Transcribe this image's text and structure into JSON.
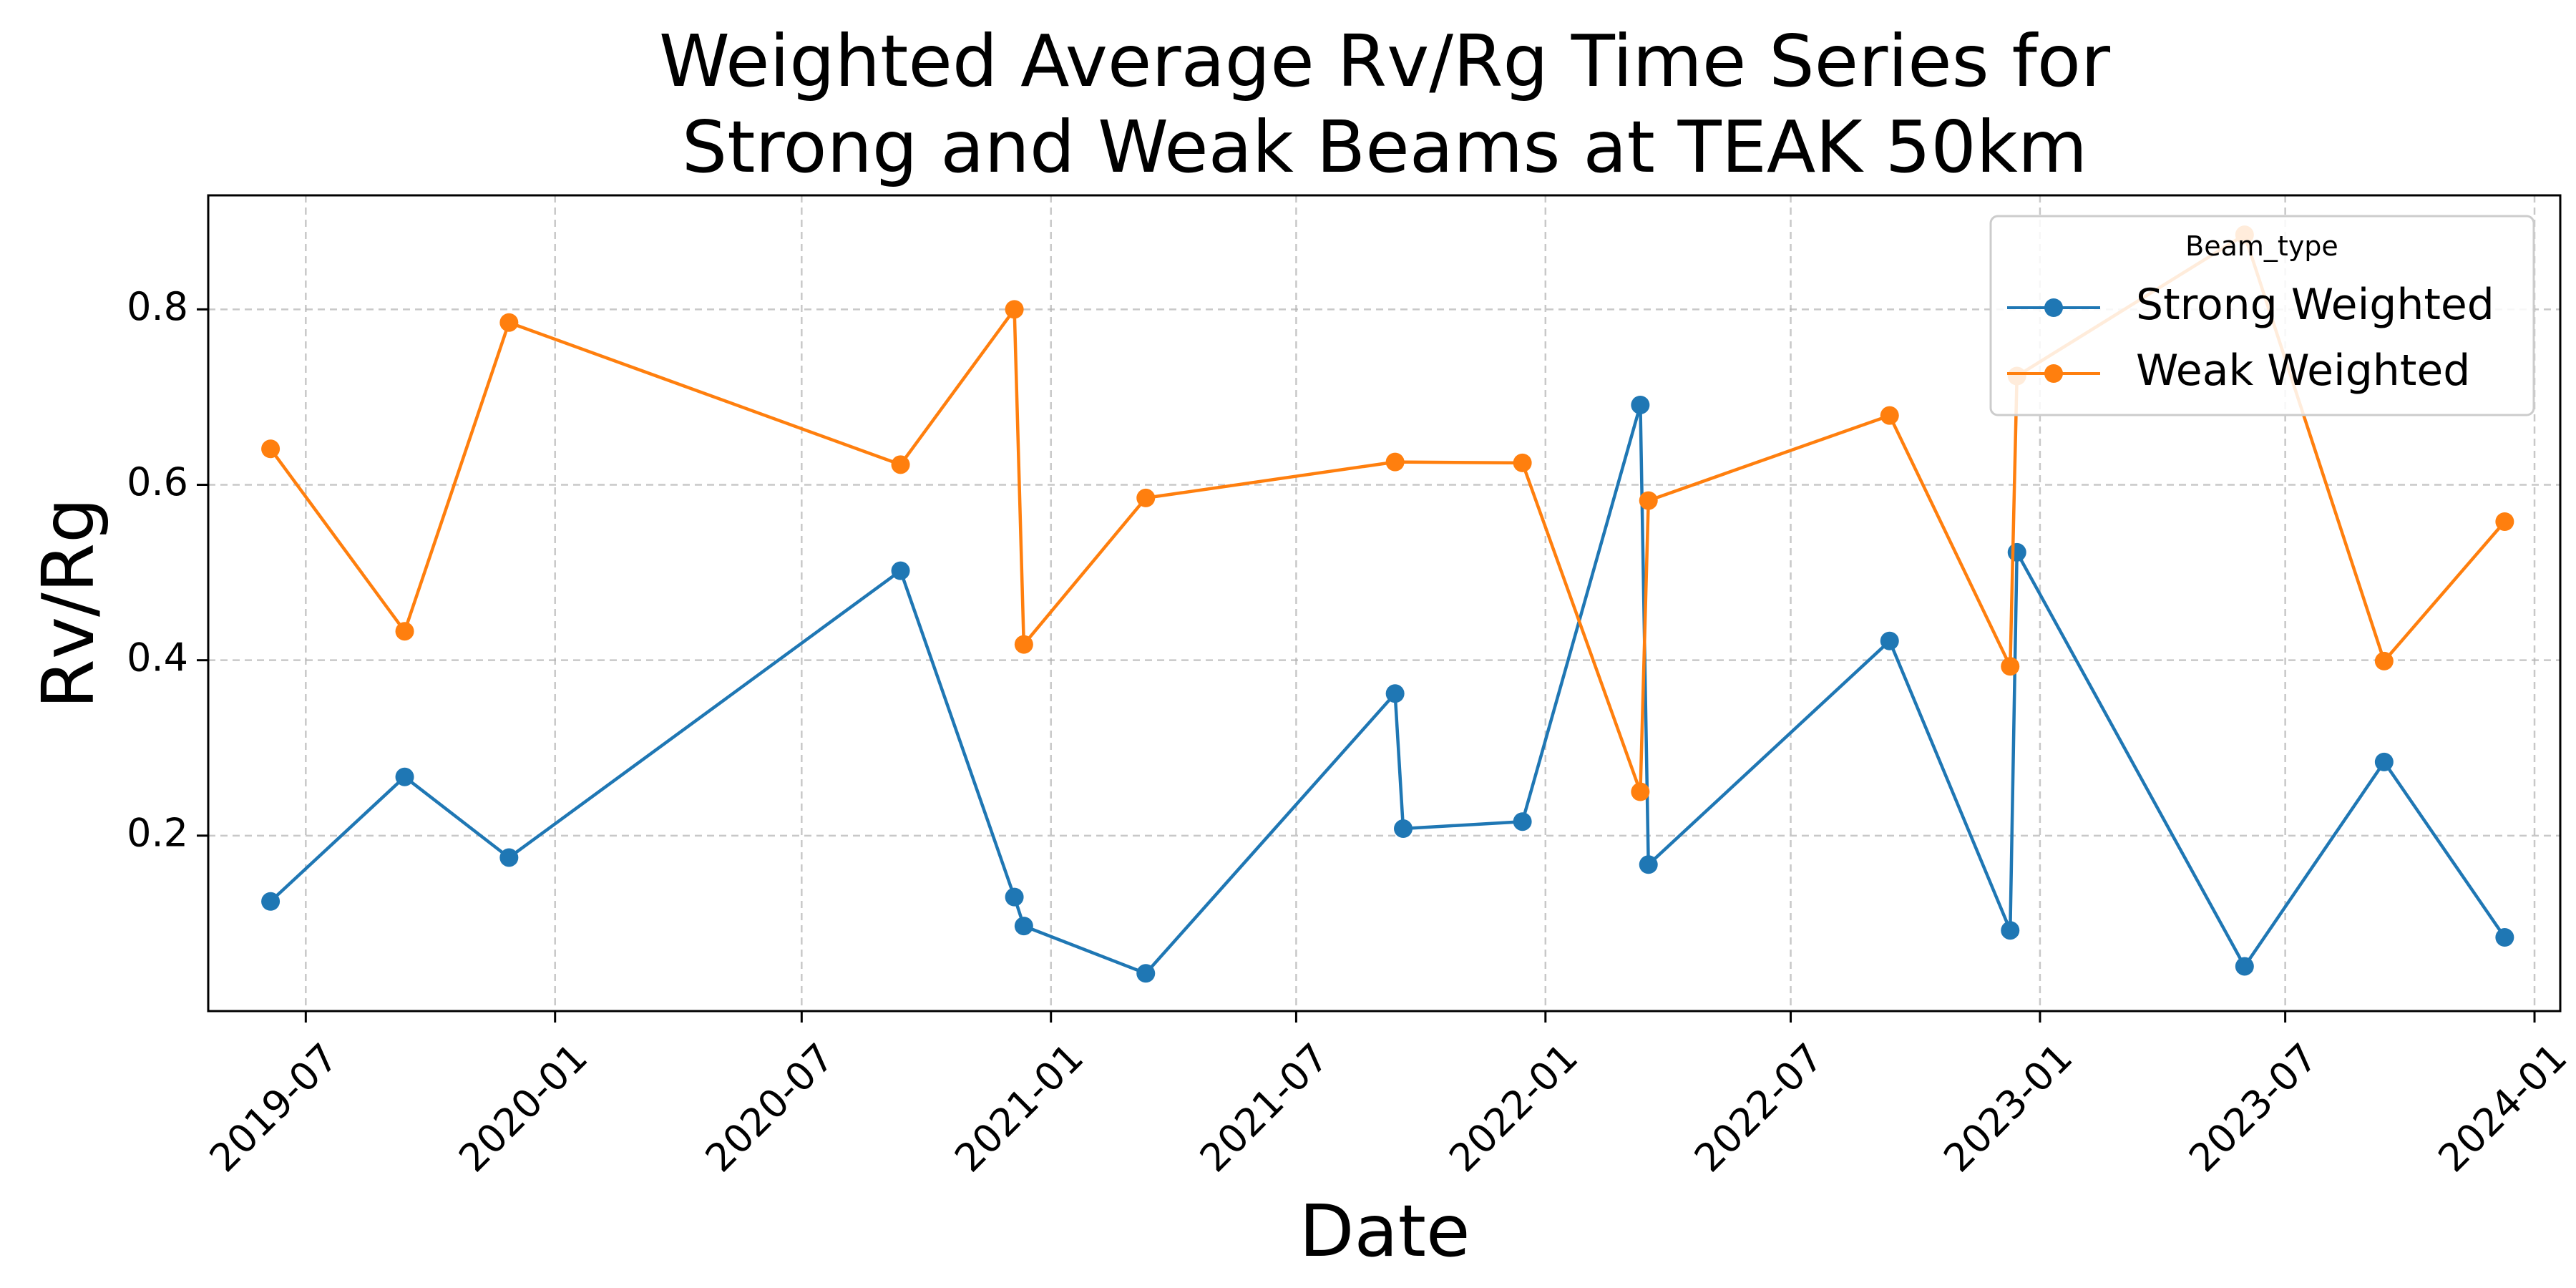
{
  "chart_data": {
    "type": "line",
    "title_lines": [
      "Weighted Average Rv/Rg Time Series for",
      "Strong and Weak Beams at TEAK 50km"
    ],
    "xlabel": "Date",
    "ylabel": "Rv/Rg",
    "x_range": [
      "2019-04-20",
      "2024-01-20"
    ],
    "ylim": [
      0.0,
      0.93
    ],
    "grid": true,
    "legend_title": "Beam_type",
    "legend_position": "top-right",
    "x_ticks": [
      {
        "date": "2019-07-01",
        "label": "2019-07"
      },
      {
        "date": "2020-01-01",
        "label": "2020-01"
      },
      {
        "date": "2020-07-01",
        "label": "2020-07"
      },
      {
        "date": "2021-01-01",
        "label": "2021-01"
      },
      {
        "date": "2021-07-01",
        "label": "2021-07"
      },
      {
        "date": "2022-01-01",
        "label": "2022-01"
      },
      {
        "date": "2022-07-01",
        "label": "2022-07"
      },
      {
        "date": "2023-01-01",
        "label": "2023-01"
      },
      {
        "date": "2023-07-01",
        "label": "2023-07"
      },
      {
        "date": "2024-01-01",
        "label": "2024-01"
      }
    ],
    "y_ticks": [
      {
        "value": 0.2,
        "label": "0.2"
      },
      {
        "value": 0.4,
        "label": "0.4"
      },
      {
        "value": 0.6,
        "label": "0.6"
      },
      {
        "value": 0.8,
        "label": "0.8"
      }
    ],
    "series": [
      {
        "name": "Strong Weighted",
        "color": "#1f77b4",
        "points": [
          {
            "date": "2019-06-05",
            "value": 0.125
          },
          {
            "date": "2019-09-12",
            "value": 0.267
          },
          {
            "date": "2019-11-28",
            "value": 0.175
          },
          {
            "date": "2020-09-12",
            "value": 0.502
          },
          {
            "date": "2020-12-05",
            "value": 0.13
          },
          {
            "date": "2020-12-12",
            "value": 0.097
          },
          {
            "date": "2021-03-12",
            "value": 0.043
          },
          {
            "date": "2021-09-12",
            "value": 0.362
          },
          {
            "date": "2021-09-18",
            "value": 0.208
          },
          {
            "date": "2021-12-15",
            "value": 0.216
          },
          {
            "date": "2022-03-12",
            "value": 0.691
          },
          {
            "date": "2022-03-18",
            "value": 0.167
          },
          {
            "date": "2022-09-12",
            "value": 0.422
          },
          {
            "date": "2022-12-10",
            "value": 0.092
          },
          {
            "date": "2022-12-15",
            "value": 0.523
          },
          {
            "date": "2023-06-01",
            "value": 0.051
          },
          {
            "date": "2023-09-12",
            "value": 0.284
          },
          {
            "date": "2023-12-10",
            "value": 0.084
          }
        ]
      },
      {
        "name": "Weak Weighted",
        "color": "#ff7f0e",
        "points": [
          {
            "date": "2019-06-05",
            "value": 0.641
          },
          {
            "date": "2019-09-12",
            "value": 0.433
          },
          {
            "date": "2019-11-28",
            "value": 0.785
          },
          {
            "date": "2020-09-12",
            "value": 0.623
          },
          {
            "date": "2020-12-05",
            "value": 0.8
          },
          {
            "date": "2020-12-12",
            "value": 0.418
          },
          {
            "date": "2021-03-12",
            "value": 0.585
          },
          {
            "date": "2021-09-12",
            "value": 0.626
          },
          {
            "date": "2021-12-15",
            "value": 0.625
          },
          {
            "date": "2022-03-12",
            "value": 0.25
          },
          {
            "date": "2022-03-18",
            "value": 0.582
          },
          {
            "date": "2022-09-12",
            "value": 0.679
          },
          {
            "date": "2022-12-10",
            "value": 0.393
          },
          {
            "date": "2022-12-15",
            "value": 0.724
          },
          {
            "date": "2023-06-01",
            "value": 0.885
          },
          {
            "date": "2023-09-12",
            "value": 0.399
          },
          {
            "date": "2023-12-10",
            "value": 0.558
          }
        ]
      }
    ]
  }
}
